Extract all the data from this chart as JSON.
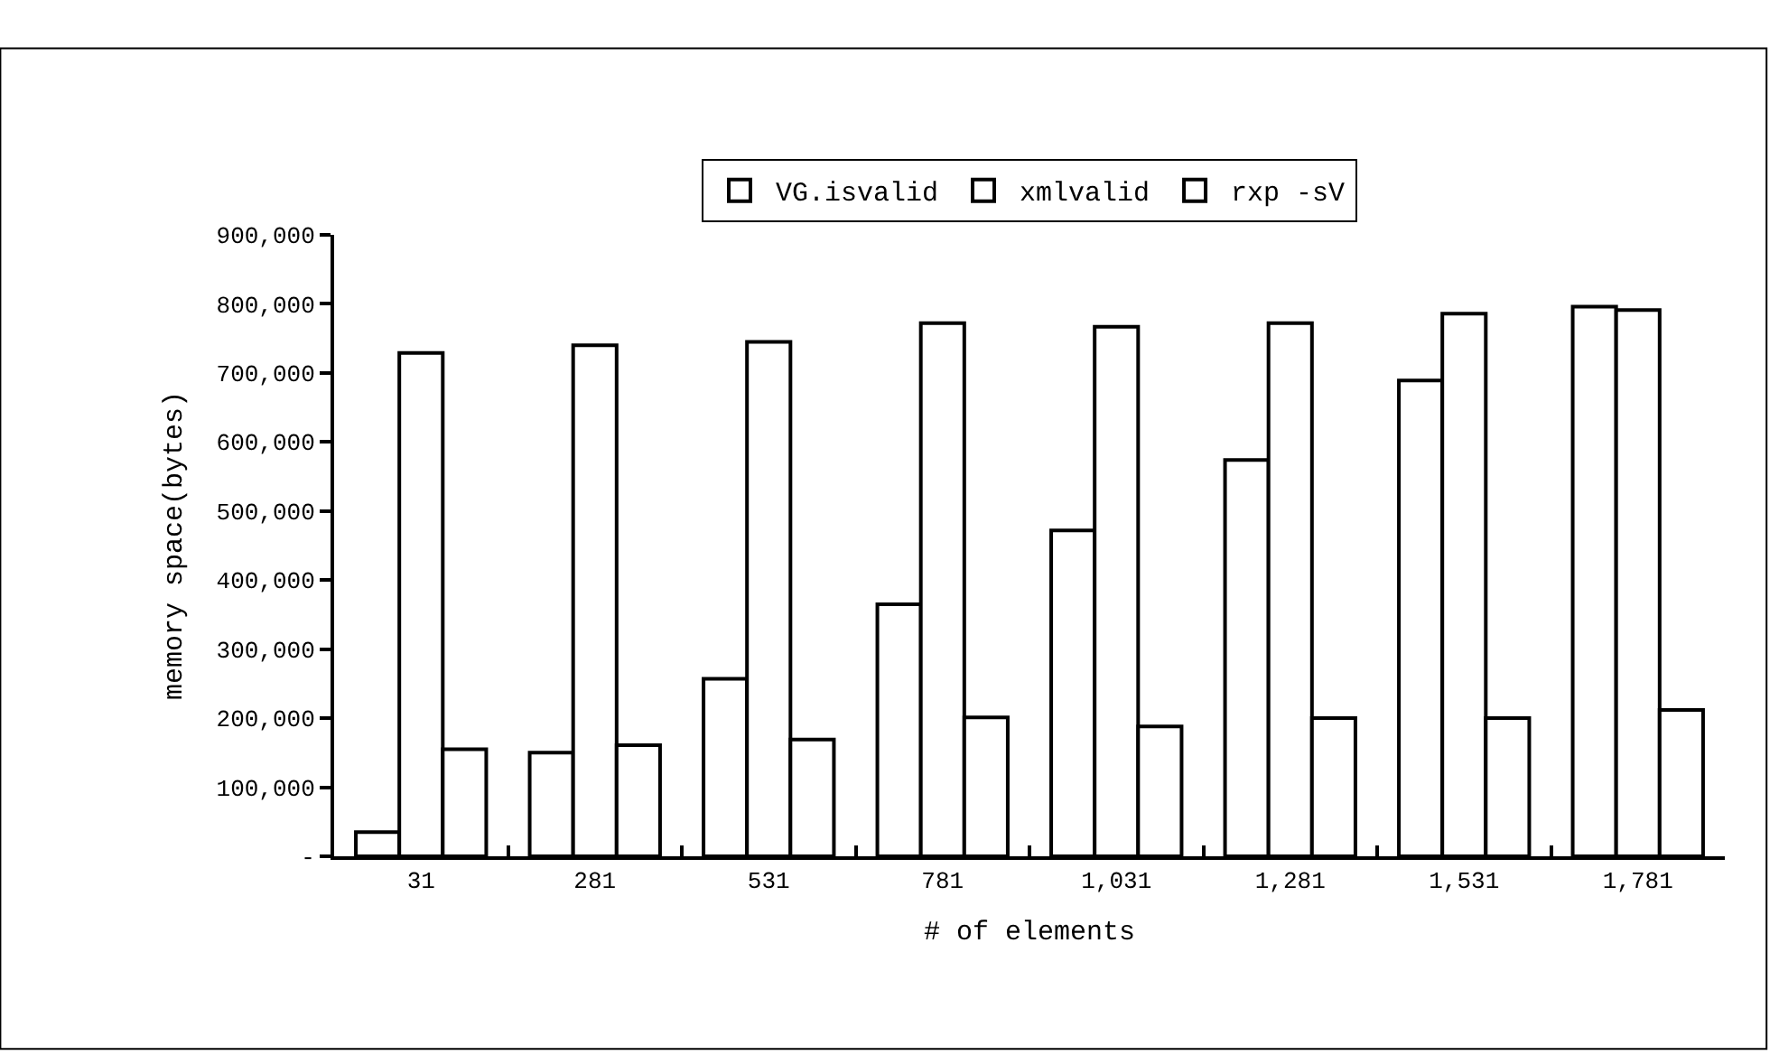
{
  "chart_data": {
    "type": "bar",
    "xlabel": "# of elements",
    "ylabel": "memory space(bytes)",
    "categories": [
      "31",
      "281",
      "531",
      "781",
      "1,031",
      "1,281",
      "1,531",
      "1,781"
    ],
    "series": [
      {
        "name": "VG.isvalid",
        "color": "#ffffff",
        "values": [
          35000,
          150000,
          257000,
          365000,
          472000,
          574000,
          689000,
          796000
        ]
      },
      {
        "name": "xmlvalid",
        "color": "#ffffff",
        "values": [
          729000,
          740000,
          745000,
          772000,
          767000,
          772000,
          786000,
          791000
        ]
      },
      {
        "name": "rxp -sV",
        "color": "#ffffff",
        "values": [
          155000,
          161000,
          169000,
          201000,
          188000,
          200000,
          200000,
          212000
        ]
      }
    ],
    "ylim": [
      0,
      900000
    ],
    "yticks": [
      {
        "value": 0,
        "label": "-"
      },
      {
        "value": 100000,
        "label": "100,000"
      },
      {
        "value": 200000,
        "label": "200,000"
      },
      {
        "value": 300000,
        "label": "300,000"
      },
      {
        "value": 400000,
        "label": "400,000"
      },
      {
        "value": 500000,
        "label": "500,000"
      },
      {
        "value": 600000,
        "label": "600,000"
      },
      {
        "value": 700000,
        "label": "700,000"
      },
      {
        "value": 800000,
        "label": "800,000"
      },
      {
        "value": 900000,
        "label": "900,000"
      }
    ],
    "grid": false,
    "legend": "top"
  }
}
